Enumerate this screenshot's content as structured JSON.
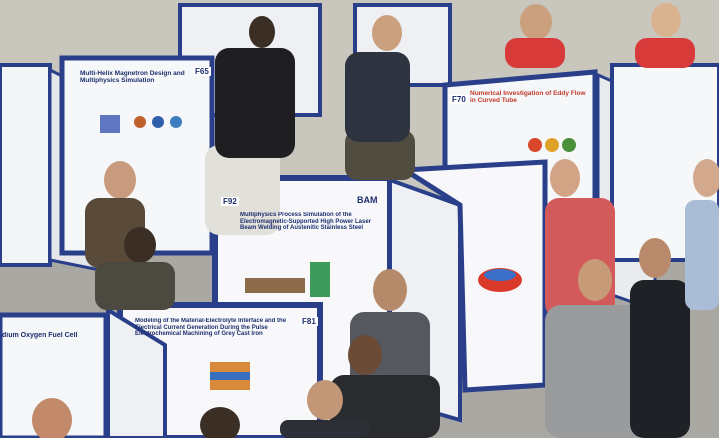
{
  "posters": [
    {
      "id": "F65",
      "title": "Multi-Helix Magnetron Design and Multiphysics Simulation"
    },
    {
      "id": "F70",
      "title": "Numerical Investigation of Eddy Flow in Curved Tube"
    },
    {
      "id": "F92",
      "logo": "BAM",
      "title": "Multiphysics Process Simulation of the Electromagnetic-Supported High Power Laser Beam Welding of Austenitic Stainless Steel"
    },
    {
      "id": "F81",
      "title": "Modeling of the Material-Electrolyte Interface and the Electrical Current Generation During the Pulse Electrochemical Machining of Grey Cast Iron"
    },
    {
      "title": "dium Oxygen Fuel Cell"
    }
  ]
}
